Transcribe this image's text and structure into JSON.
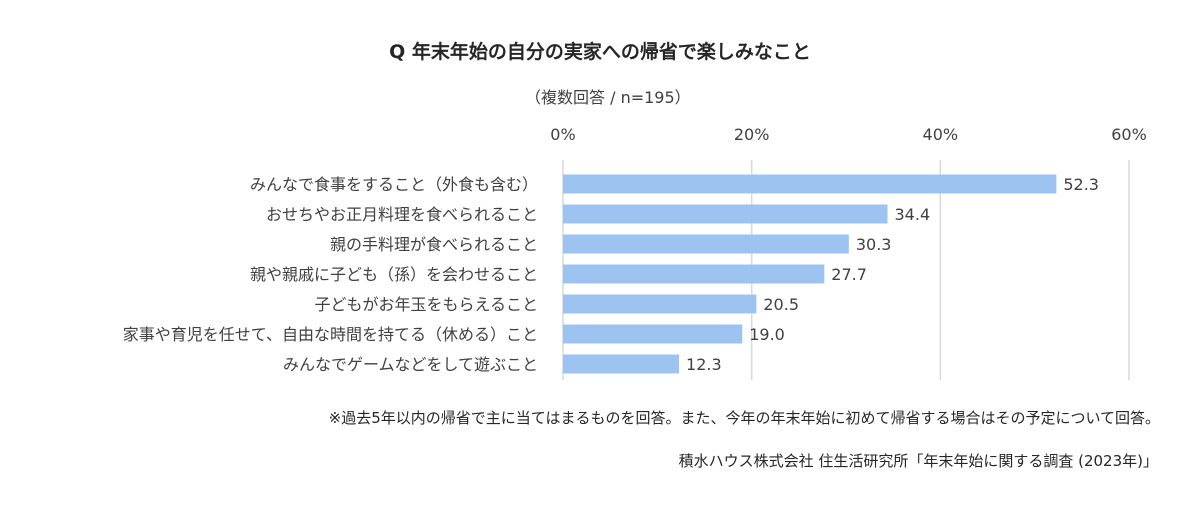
{
  "chart_data": {
    "type": "bar",
    "orientation": "horizontal",
    "title": "Q 年末年始の自分の実家への帰省で楽しみなこと",
    "subtitle": "（複数回答 / n=195）",
    "categories": [
      "みんなで食事をすること（外食も含む）",
      "おせちやお正月料理を食べられること",
      "親の手料理が食べられること",
      "親や親戚に子ども（孫）を会わせること",
      "子どもがお年玉をもらえること",
      "家事や育児を任せて、自由な時間を持てる（休める）こと",
      "みんなでゲームなどをして遊ぶこと"
    ],
    "values": [
      52.3,
      34.4,
      30.3,
      27.7,
      20.5,
      19.0,
      12.3
    ],
    "value_labels": [
      "52.3",
      "34.4",
      "30.3",
      "27.7",
      "20.5",
      "19.0",
      "12.3"
    ],
    "xlim": [
      0,
      60
    ],
    "ticks": [
      0,
      20,
      40,
      60
    ],
    "tick_labels": [
      "0%",
      "20%",
      "40%",
      "60%"
    ],
    "axis_position": "top",
    "grid": true,
    "bar_color": "#9dc3f0",
    "grid_color": "#d9d9d9"
  },
  "footnote": "※過去5年以内の帰省で主に当てはまるものを回答。また、今年の年末年始に初めて帰省する場合はその予定について回答。",
  "source": "積水ハウス株式会社 住生活研究所「年末年始に関する調査 (2023年)」"
}
